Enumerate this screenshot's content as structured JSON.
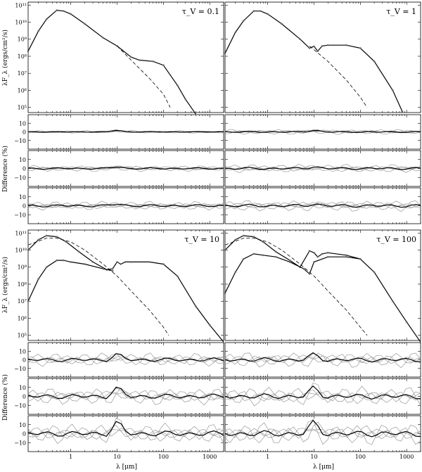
{
  "axes": {
    "xlabel": "λ [μm]",
    "ylabel_flux": "λF_λ (ergs/cm²/s)",
    "ylabel_diff": "Difference (%)",
    "x_ticks": [
      "1",
      "10",
      "100",
      "1000"
    ],
    "y_flux_ticks": [
      "10⁵",
      "10⁶",
      "10⁷",
      "10⁸",
      "10⁹",
      "10¹⁰",
      "10¹¹"
    ],
    "y_diff_ticks": [
      "10",
      "0",
      "−10"
    ]
  },
  "chart_data": [
    {
      "type": "line",
      "panel": "top-left",
      "title": "τ_V = 0.1",
      "xscale": "log",
      "yscale": "log",
      "xlim": [
        0.12,
        2000
      ],
      "ylim": [
        50000,
        150000000000
      ],
      "series": [
        {
          "style": "solid",
          "x": [
            0.12,
            0.2,
            0.3,
            0.5,
            0.7,
            1,
            2,
            5,
            10,
            20,
            30,
            60,
            100,
            200,
            300,
            500
          ],
          "y": [
            200000000.0,
            3000000000.0,
            15000000000.0,
            50000000000.0,
            45000000000.0,
            30000000000.0,
            8000000000.0,
            1200000000.0,
            400000000.0,
            90000000.0,
            60000000.0,
            50000000.0,
            30000000.0,
            2000000.0,
            300000.0,
            40000.0
          ]
        },
        {
          "style": "dashed",
          "x": [
            10,
            20,
            50,
            100,
            140
          ],
          "y": [
            400000000.0,
            60000000.0,
            5000000.0,
            600000.0,
            100000.0
          ]
        }
      ]
    },
    {
      "type": "line",
      "panel": "top-right",
      "title": "τ_V = 1",
      "xscale": "log",
      "yscale": "log",
      "xlim": [
        0.12,
        2000
      ],
      "ylim": [
        50000,
        150000000000
      ],
      "series": [
        {
          "style": "solid",
          "x": [
            0.12,
            0.2,
            0.3,
            0.5,
            0.7,
            1,
            2,
            5,
            8,
            10,
            12,
            15,
            20,
            50,
            100,
            200,
            500,
            800
          ],
          "y": [
            150000000.0,
            2500000000.0,
            12000000000.0,
            45000000000.0,
            45000000000.0,
            30000000000.0,
            8000000000.0,
            1000000000.0,
            300000000.0,
            380000000.0,
            200000000.0,
            400000000.0,
            450000000.0,
            450000000.0,
            300000000.0,
            50000000.0,
            1000000.0,
            60000.0
          ]
        },
        {
          "style": "dashed",
          "x": [
            8,
            20,
            50,
            100,
            140
          ],
          "y": [
            400000000.0,
            50000000.0,
            4000000.0,
            400000.0,
            100000.0
          ]
        }
      ]
    },
    {
      "type": "line",
      "panel": "bottom-left",
      "title": "τ_V = 10",
      "xscale": "log",
      "yscale": "log",
      "xlim": [
        0.12,
        2000
      ],
      "ylim": [
        50000,
        150000000000
      ],
      "series": [
        {
          "style": "solid",
          "x": [
            0.12,
            0.2,
            0.3,
            0.5,
            0.8,
            1.5,
            3,
            6,
            8,
            10,
            12,
            15,
            20,
            50,
            100,
            200,
            500,
            1000,
            2000
          ],
          "y": [
            10000000000.0,
            40000000000.0,
            70000000000.0,
            60000000000.0,
            30000000000.0,
            8000000000.0,
            2000000000.0,
            700000000.0,
            800000000.0,
            2000000000.0,
            1500000000.0,
            2000000000.0,
            2000000000.0,
            2000000000.0,
            1500000000.0,
            300000000.0,
            5000000.0,
            400000.0,
            40000.0
          ]
        },
        {
          "style": "solid",
          "x": [
            0.12,
            0.2,
            0.3,
            0.5,
            0.7,
            1,
            2,
            5,
            8
          ],
          "y": [
            10000000.0,
            200000000.0,
            1000000000.0,
            2500000000.0,
            2500000000.0,
            2000000000.0,
            1500000000.0,
            800000000.0,
            600000000.0
          ]
        },
        {
          "style": "dashed",
          "x": [
            0.12,
            0.3,
            0.5,
            1,
            2,
            5,
            10,
            20,
            50,
            100,
            130
          ],
          "y": [
            20000000000.0,
            50000000000.0,
            50000000000.0,
            30000000000.0,
            10000000000.0,
            1500000000.0,
            300000000.0,
            40000000.0,
            3000000.0,
            300000.0,
            100000.0
          ]
        }
      ]
    },
    {
      "type": "line",
      "panel": "bottom-right",
      "title": "τ_V = 100",
      "xscale": "log",
      "yscale": "log",
      "xlim": [
        0.12,
        2000
      ],
      "ylim": [
        50000,
        150000000000
      ],
      "series": [
        {
          "style": "solid",
          "x": [
            0.12,
            0.2,
            0.3,
            0.5,
            0.8,
            1.5,
            3,
            5,
            8,
            10,
            12,
            15,
            20,
            50,
            100,
            200,
            500,
            1000,
            2000
          ],
          "y": [
            10000000000.0,
            40000000000.0,
            70000000000.0,
            60000000000.0,
            30000000000.0,
            8000000000.0,
            2500000000.0,
            1000000000.0,
            9000000000.0,
            7000000000.0,
            4000000000.0,
            6000000000.0,
            7000000000.0,
            5000000000.0,
            3000000000.0,
            500000000.0,
            10000000.0,
            600000.0,
            40000.0
          ]
        },
        {
          "style": "solid",
          "x": [
            0.12,
            0.2,
            0.3,
            0.5,
            0.8,
            1.5,
            3,
            6,
            8,
            10,
            15,
            20,
            50,
            100
          ],
          "y": [
            30000000.0,
            500000000.0,
            3000000000.0,
            6000000000.0,
            5000000000.0,
            4000000000.0,
            2000000000.0,
            800000000.0,
            400000000.0,
            2000000000.0,
            3000000000.0,
            4000000000.0,
            4000000000.0,
            3000000000.0
          ]
        },
        {
          "style": "dashed",
          "x": [
            0.12,
            0.3,
            0.5,
            1,
            2,
            5,
            10,
            20,
            50,
            100,
            140
          ],
          "y": [
            20000000000.0,
            50000000000.0,
            50000000000.0,
            30000000000.0,
            10000000000.0,
            1500000000.0,
            300000000.0,
            40000000.0,
            3000000.0,
            300000.0,
            100000.0
          ]
        }
      ]
    }
  ]
}
